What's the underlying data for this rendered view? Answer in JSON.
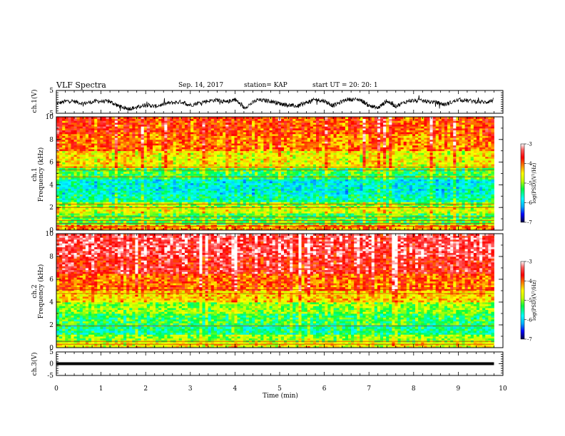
{
  "header": {
    "title": "VLF Spectra",
    "date": "Sep. 14, 2017",
    "station": "station= KAP",
    "start_ut": "start  UT  =   20: 20: 1"
  },
  "chart_data": [
    {
      "type": "line",
      "name": "ch1-waveform",
      "ylabel": "ch.1(V)",
      "ylim": [
        -5,
        5
      ],
      "yticks": [
        5,
        -5
      ],
      "xlim": [
        0,
        10
      ],
      "x_unit": "min",
      "data_end_min": 9.8,
      "points": [
        [
          0,
          -0.8
        ],
        [
          0.3,
          0.6
        ],
        [
          0.6,
          -0.7
        ],
        [
          0.9,
          0.3
        ],
        [
          1.2,
          0.1
        ],
        [
          1.4,
          -1.9
        ],
        [
          1.6,
          -3.0
        ],
        [
          1.8,
          -2.5
        ],
        [
          2.0,
          -1.2
        ],
        [
          2.2,
          -2.0
        ],
        [
          2.5,
          -0.6
        ],
        [
          2.8,
          0.0
        ],
        [
          3.0,
          -1.4
        ],
        [
          3.3,
          0.1
        ],
        [
          3.6,
          0.9
        ],
        [
          3.8,
          -0.2
        ],
        [
          4.0,
          1.2
        ],
        [
          4.2,
          -2.6
        ],
        [
          4.5,
          0.8
        ],
        [
          4.8,
          0.4
        ],
        [
          5.0,
          -0.7
        ],
        [
          5.2,
          -1.4
        ],
        [
          5.4,
          -1.9
        ],
        [
          5.6,
          -0.3
        ],
        [
          5.8,
          1.0
        ],
        [
          6.0,
          0.4
        ],
        [
          6.2,
          -1.7
        ],
        [
          6.5,
          1.1
        ],
        [
          6.8,
          1.0
        ],
        [
          7.0,
          -1.6
        ],
        [
          7.2,
          -2.7
        ],
        [
          7.4,
          0.4
        ],
        [
          7.6,
          -1.9
        ],
        [
          7.9,
          0.6
        ],
        [
          8.2,
          0.4
        ],
        [
          8.5,
          -0.2
        ],
        [
          8.7,
          -1.2
        ],
        [
          9.0,
          0.9
        ],
        [
          9.3,
          0.4
        ],
        [
          9.6,
          -0.2
        ],
        [
          9.8,
          0.8
        ]
      ]
    },
    {
      "type": "heatmap",
      "name": "ch1-spectrogram",
      "ylabel": "ch.1\nFrequency (kHz)",
      "ylim": [
        0,
        10
      ],
      "yticks": [
        0,
        2,
        4,
        6,
        8,
        10
      ],
      "xlim": [
        0,
        10
      ],
      "value_unit": "log(PSD)(V²/Hz)",
      "bands": [
        [
          0,
          0.5,
          -4.2
        ],
        [
          0.5,
          1.5,
          -5.2
        ],
        [
          1.5,
          2.0,
          -4.7
        ],
        [
          2.0,
          2.5,
          -5.0
        ],
        [
          2.5,
          3.2,
          -5.6
        ],
        [
          3.2,
          4.5,
          -5.8
        ],
        [
          4.5,
          5.5,
          -5.3
        ],
        [
          5.5,
          7.0,
          -4.6
        ],
        [
          7.0,
          8.5,
          -4.1
        ],
        [
          8.5,
          10.0,
          -3.9
        ]
      ]
    },
    {
      "type": "heatmap",
      "name": "ch2-spectrogram",
      "ylabel": "ch.2\nFrequency (kHz)",
      "ylim": [
        0,
        10
      ],
      "yticks": [
        0,
        2,
        4,
        6,
        8,
        10
      ],
      "xlim": [
        0,
        10
      ],
      "value_unit": "log(PSD)(V²/Hz)",
      "bands": [
        [
          0,
          0.5,
          -4.6
        ],
        [
          0.5,
          1.2,
          -5.0
        ],
        [
          1.2,
          2.0,
          -5.5
        ],
        [
          2.0,
          3.0,
          -5.3
        ],
        [
          3.0,
          4.0,
          -5.0
        ],
        [
          4.0,
          5.0,
          -4.4
        ],
        [
          5.0,
          6.5,
          -4.0
        ],
        [
          6.5,
          8.0,
          -3.6
        ],
        [
          8.0,
          10.0,
          -3.4
        ]
      ]
    },
    {
      "type": "line",
      "name": "ch3-waveform",
      "ylabel": "ch.3(V)",
      "ylim": [
        -5,
        5
      ],
      "yticks": [
        5,
        0,
        -5
      ],
      "xlim": [
        0,
        10
      ],
      "points": [
        [
          0,
          0
        ],
        [
          9.8,
          0
        ]
      ]
    }
  ],
  "colorbar": {
    "label": "log(PSD)(V²/Hz)",
    "range": [
      -7,
      -3
    ],
    "ticks": [
      -3,
      -4,
      -5,
      -6,
      -7
    ],
    "stops": [
      {
        "v": -7.0,
        "color": "#000040"
      },
      {
        "v": -6.6,
        "color": "#0000ff"
      },
      {
        "v": -6.2,
        "color": "#00b0ff"
      },
      {
        "v": -5.8,
        "color": "#00ffff"
      },
      {
        "v": -5.3,
        "color": "#00ff40"
      },
      {
        "v": -4.9,
        "color": "#c0ff00"
      },
      {
        "v": -4.5,
        "color": "#ffff00"
      },
      {
        "v": -4.1,
        "color": "#ff8000"
      },
      {
        "v": -3.7,
        "color": "#ff0000"
      },
      {
        "v": -3.3,
        "color": "#ff6060"
      },
      {
        "v": -3.0,
        "color": "#ffffff"
      }
    ]
  },
  "xaxis": {
    "label": "Time (min)",
    "ticks": [
      0,
      1,
      2,
      3,
      4,
      5,
      6,
      7,
      8,
      9,
      10
    ]
  }
}
